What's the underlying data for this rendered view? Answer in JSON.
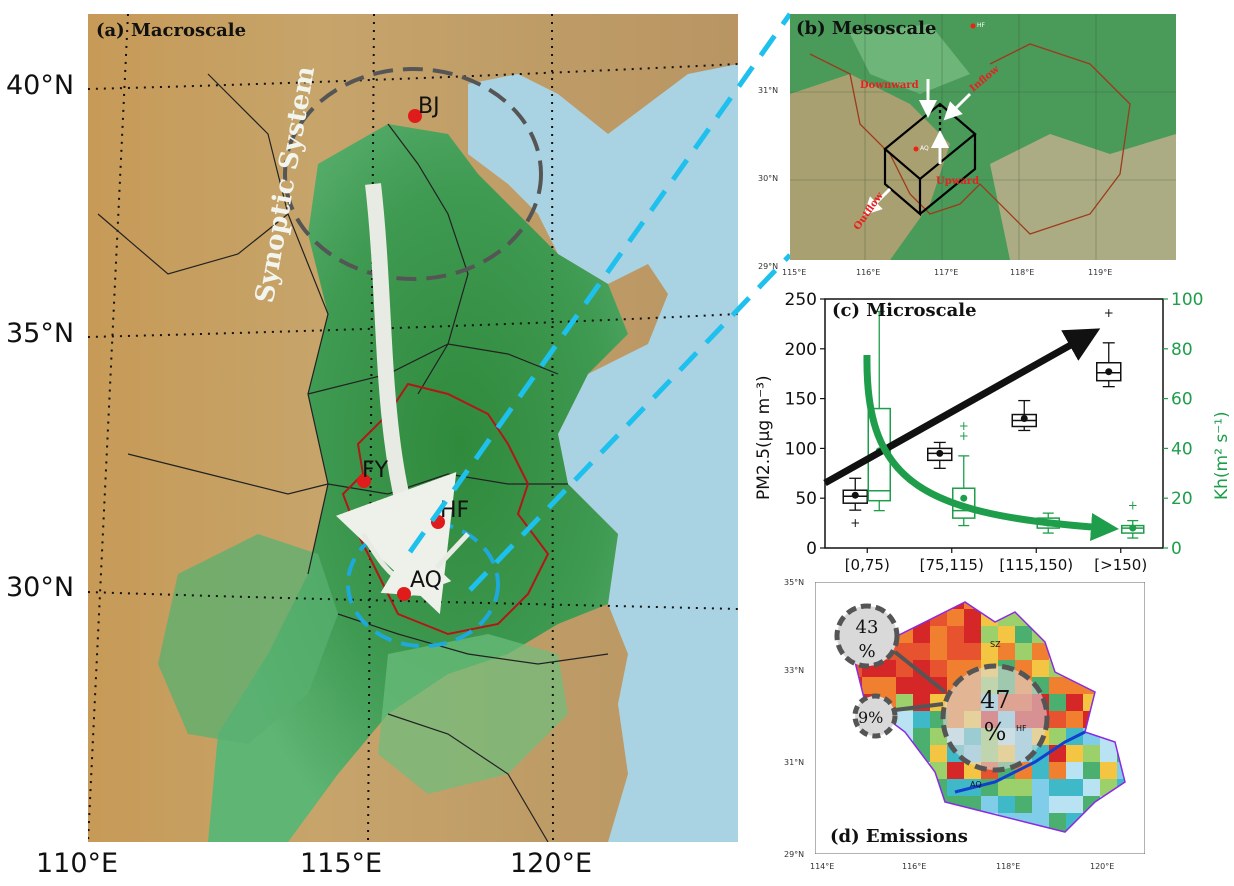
{
  "panel_a": {
    "title": "(a) Macroscale",
    "lat_labels": [
      "40°N",
      "35°N",
      "30°N"
    ],
    "lon_labels": [
      "110°E",
      "115°E",
      "120°E"
    ],
    "cities": [
      "BJ",
      "FY",
      "HF",
      "AQ"
    ],
    "arrow_label": "Synoptic System"
  },
  "panel_b": {
    "title": "(b) Mesoscale",
    "lat_labels": [
      "31°N",
      "30°N",
      "29°N"
    ],
    "lon_labels": [
      "115°E",
      "116°E",
      "117°E",
      "118°E",
      "119°E"
    ],
    "flow_labels": [
      "Downward",
      "Inflow",
      "Upward",
      "Outflow"
    ],
    "site_labels": [
      "AQ",
      "HF"
    ]
  },
  "panel_c": {
    "title": "(c) Microscale",
    "ylabel_left": "PM2.5(μg m⁻³)",
    "ylabel_right": "Kh(m² s⁻¹)",
    "colors": {
      "pm": "#111111",
      "kh": "#1e9e4a"
    },
    "chart_data": {
      "type": "box",
      "categories": [
        "[0,75)",
        "[75,115)",
        "[115,150)",
        "[>150)"
      ],
      "ylim_left": [
        0,
        250
      ],
      "ylim_right": [
        0,
        100
      ],
      "yticks_left": [
        0,
        50,
        100,
        150,
        200,
        250
      ],
      "yticks_right": [
        0,
        20,
        40,
        60,
        80,
        100
      ],
      "series": [
        {
          "name": "PM2.5",
          "axis": "left",
          "boxes": [
            {
              "whislo": 38,
              "q1": 45,
              "med": 52,
              "q3": 58,
              "whishi": 70,
              "mean": 53,
              "fliers": [
                25
              ]
            },
            {
              "whislo": 80,
              "q1": 88,
              "med": 95,
              "q3": 100,
              "whishi": 106,
              "mean": 95,
              "fliers": []
            },
            {
              "whislo": 118,
              "q1": 122,
              "med": 128,
              "q3": 134,
              "whishi": 148,
              "mean": 130,
              "fliers": []
            },
            {
              "whislo": 162,
              "q1": 168,
              "med": 176,
              "q3": 186,
              "whishi": 206,
              "mean": 177,
              "fliers": [
                236
              ]
            }
          ]
        },
        {
          "name": "Kh",
          "axis": "right",
          "boxes": [
            {
              "whislo": 15,
              "q1": 19,
              "med": 23,
              "q3": 56,
              "whishi": 95,
              "mean": 39,
              "fliers": []
            },
            {
              "whislo": 9,
              "q1": 12,
              "med": 15,
              "q3": 24,
              "whishi": 37,
              "mean": 20,
              "fliers": [
                45,
                49
              ]
            },
            {
              "whislo": 6,
              "q1": 8,
              "med": 10,
              "q3": 12,
              "whishi": 14,
              "mean": 10,
              "fliers": []
            },
            {
              "whislo": 4,
              "q1": 6,
              "med": 8,
              "q3": 9,
              "whishi": 11,
              "mean": 8,
              "fliers": [
                17
              ]
            }
          ]
        }
      ]
    }
  },
  "panel_d": {
    "title": "(d) Emissions",
    "lat_labels": [
      "35°N",
      "33°N",
      "31°N",
      "29°N"
    ],
    "lon_labels": [
      "114°E",
      "116°E",
      "118°E",
      "120°E"
    ],
    "percent_labels": [
      "43 %",
      "9%",
      "47 %"
    ],
    "site_labels": [
      "SZ",
      "HF",
      "AQ"
    ]
  }
}
